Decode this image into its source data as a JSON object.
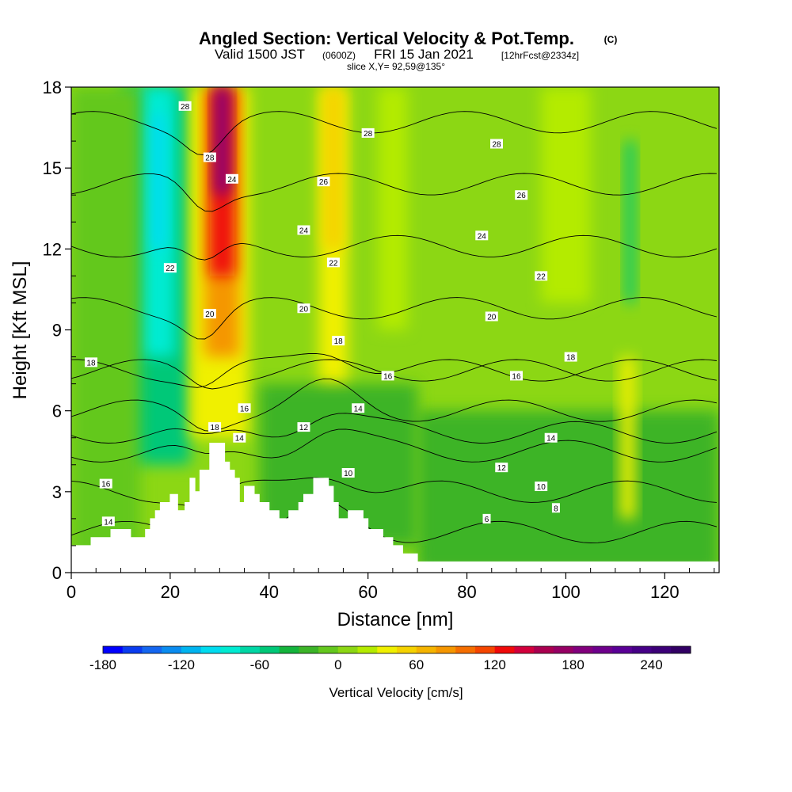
{
  "title": {
    "main": "Angled Section: Vertical Velocity & Pot.Temp.",
    "main_suffix": "(C)",
    "valid_prefix": "Valid 1500 JST",
    "valid_zulu": "(0600Z)",
    "valid_date": "FRI 15 Jan 2021",
    "forecast": "[12hrFcst@2334z]",
    "slice": "slice X,Y= 92,59@135°"
  },
  "chart_data": {
    "type": "heatmap",
    "xlabel": "Distance [nm]",
    "ylabel": "Height [Kft MSL]",
    "xlim": [
      0,
      131
    ],
    "ylim": [
      0,
      18
    ],
    "x_ticks": [
      "0",
      "20",
      "40",
      "60",
      "80",
      "100",
      "120"
    ],
    "y_ticks": [
      "0",
      "3",
      "6",
      "9",
      "12",
      "15",
      "18"
    ],
    "colorbar": {
      "label": "Vertical Velocity [cm/s]",
      "range": [
        -180,
        270
      ],
      "step": 15,
      "tick_labels": [
        "-180",
        "-120",
        "-60",
        "0",
        "60",
        "120",
        "180",
        "240"
      ],
      "colors": [
        "#0000ff",
        "#0a3cf0",
        "#1466f0",
        "#0a8cf0",
        "#00b4f0",
        "#00dcf0",
        "#00ebd2",
        "#00d7a5",
        "#00c878",
        "#14b43c",
        "#3cb428",
        "#64c81e",
        "#8cd714",
        "#b4eb00",
        "#f0f000",
        "#f5d200",
        "#f5b400",
        "#f59600",
        "#f56e00",
        "#f54600",
        "#f00a0a",
        "#d2003c",
        "#aa0050",
        "#960064",
        "#82007d",
        "#6e008c",
        "#5a0096",
        "#460087",
        "#3c0078",
        "#320064"
      ],
      "tick_values": [
        -180,
        -120,
        -60,
        0,
        60,
        120,
        180,
        240
      ]
    },
    "contour_levels": [
      6,
      8,
      10,
      12,
      14,
      16,
      18,
      20,
      22,
      24,
      26,
      28
    ],
    "contour_labels": [
      {
        "text": "28",
        "x": 23,
        "y": 17.3
      },
      {
        "text": "28",
        "x": 28,
        "y": 15.4
      },
      {
        "text": "24",
        "x": 32.5,
        "y": 14.6
      },
      {
        "text": "22",
        "x": 20,
        "y": 11.3
      },
      {
        "text": "20",
        "x": 28,
        "y": 9.6
      },
      {
        "text": "18",
        "x": 4,
        "y": 7.8
      },
      {
        "text": "18",
        "x": 29,
        "y": 5.4
      },
      {
        "text": "16",
        "x": 35,
        "y": 6.1
      },
      {
        "text": "14",
        "x": 34,
        "y": 5.0
      },
      {
        "text": "16",
        "x": 7,
        "y": 3.3
      },
      {
        "text": "14",
        "x": 7.5,
        "y": 1.9
      },
      {
        "text": "28",
        "x": 60,
        "y": 16.3
      },
      {
        "text": "26",
        "x": 51,
        "y": 14.5
      },
      {
        "text": "24",
        "x": 47,
        "y": 12.7
      },
      {
        "text": "22",
        "x": 53,
        "y": 11.5
      },
      {
        "text": "20",
        "x": 47,
        "y": 9.8
      },
      {
        "text": "18",
        "x": 54,
        "y": 8.6
      },
      {
        "text": "16",
        "x": 64,
        "y": 7.3
      },
      {
        "text": "14",
        "x": 58,
        "y": 6.1
      },
      {
        "text": "12",
        "x": 47,
        "y": 5.4
      },
      {
        "text": "10",
        "x": 56,
        "y": 3.7
      },
      {
        "text": "28",
        "x": 86,
        "y": 15.9
      },
      {
        "text": "26",
        "x": 91,
        "y": 14.0
      },
      {
        "text": "24",
        "x": 83,
        "y": 12.5
      },
      {
        "text": "22",
        "x": 95,
        "y": 11.0
      },
      {
        "text": "20",
        "x": 85,
        "y": 9.5
      },
      {
        "text": "18",
        "x": 101,
        "y": 8.0
      },
      {
        "text": "16",
        "x": 90,
        "y": 7.3
      },
      {
        "text": "14",
        "x": 97,
        "y": 5.0
      },
      {
        "text": "12",
        "x": 87,
        "y": 3.9
      },
      {
        "text": "10",
        "x": 95,
        "y": 3.2
      },
      {
        "text": "8",
        "x": 98,
        "y": 2.4
      },
      {
        "text": "6",
        "x": 84,
        "y": 2.0
      }
    ],
    "terrain_kft": [
      [
        0,
        1
      ],
      [
        4,
        1
      ],
      [
        4,
        1.3
      ],
      [
        8,
        1.3
      ],
      [
        8,
        1.6
      ],
      [
        12,
        1.6
      ],
      [
        12,
        1.3
      ],
      [
        15,
        1.3
      ],
      [
        15,
        1.6
      ],
      [
        16,
        1.6
      ],
      [
        16,
        2.0
      ],
      [
        17,
        2.0
      ],
      [
        17,
        2.3
      ],
      [
        18,
        2.3
      ],
      [
        18,
        2.6
      ],
      [
        20,
        2.6
      ],
      [
        20,
        2.9
      ],
      [
        21.5,
        2.9
      ],
      [
        21.5,
        2.3
      ],
      [
        23,
        2.3
      ],
      [
        23,
        2.6
      ],
      [
        24,
        2.6
      ],
      [
        24,
        3.5
      ],
      [
        25,
        3.5
      ],
      [
        25,
        3.0
      ],
      [
        26,
        3.0
      ],
      [
        26,
        3.8
      ],
      [
        28,
        3.8
      ],
      [
        28,
        4.8
      ],
      [
        31,
        4.8
      ],
      [
        31,
        4.1
      ],
      [
        32,
        4.1
      ],
      [
        32,
        3.8
      ],
      [
        33,
        3.8
      ],
      [
        33,
        3.5
      ],
      [
        34,
        3.5
      ],
      [
        34,
        2.6
      ],
      [
        35,
        2.6
      ],
      [
        35,
        3.2
      ],
      [
        37,
        3.2
      ],
      [
        37,
        2.9
      ],
      [
        38,
        2.9
      ],
      [
        38,
        2.6
      ],
      [
        40,
        2.6
      ],
      [
        40,
        2.3
      ],
      [
        42,
        2.3
      ],
      [
        42,
        2.0
      ],
      [
        44,
        2.0
      ],
      [
        44,
        2.3
      ],
      [
        46,
        2.3
      ],
      [
        46,
        2.6
      ],
      [
        47,
        2.6
      ],
      [
        47,
        2.9
      ],
      [
        49,
        2.9
      ],
      [
        49,
        3.5
      ],
      [
        52,
        3.5
      ],
      [
        52,
        3.2
      ],
      [
        53,
        3.2
      ],
      [
        53,
        2.6
      ],
      [
        54,
        2.6
      ],
      [
        54,
        2.0
      ],
      [
        56,
        2.0
      ],
      [
        56,
        2.3
      ],
      [
        59,
        2.3
      ],
      [
        59,
        2.0
      ],
      [
        60,
        2.0
      ],
      [
        60,
        1.6
      ],
      [
        63,
        1.6
      ],
      [
        63,
        1.3
      ],
      [
        65,
        1.3
      ],
      [
        65,
        1.0
      ],
      [
        67,
        1.0
      ],
      [
        67,
        0.7
      ],
      [
        70,
        0.7
      ],
      [
        70,
        0.4
      ],
      [
        131,
        0.4
      ],
      [
        131,
        0
      ]
    ]
  }
}
